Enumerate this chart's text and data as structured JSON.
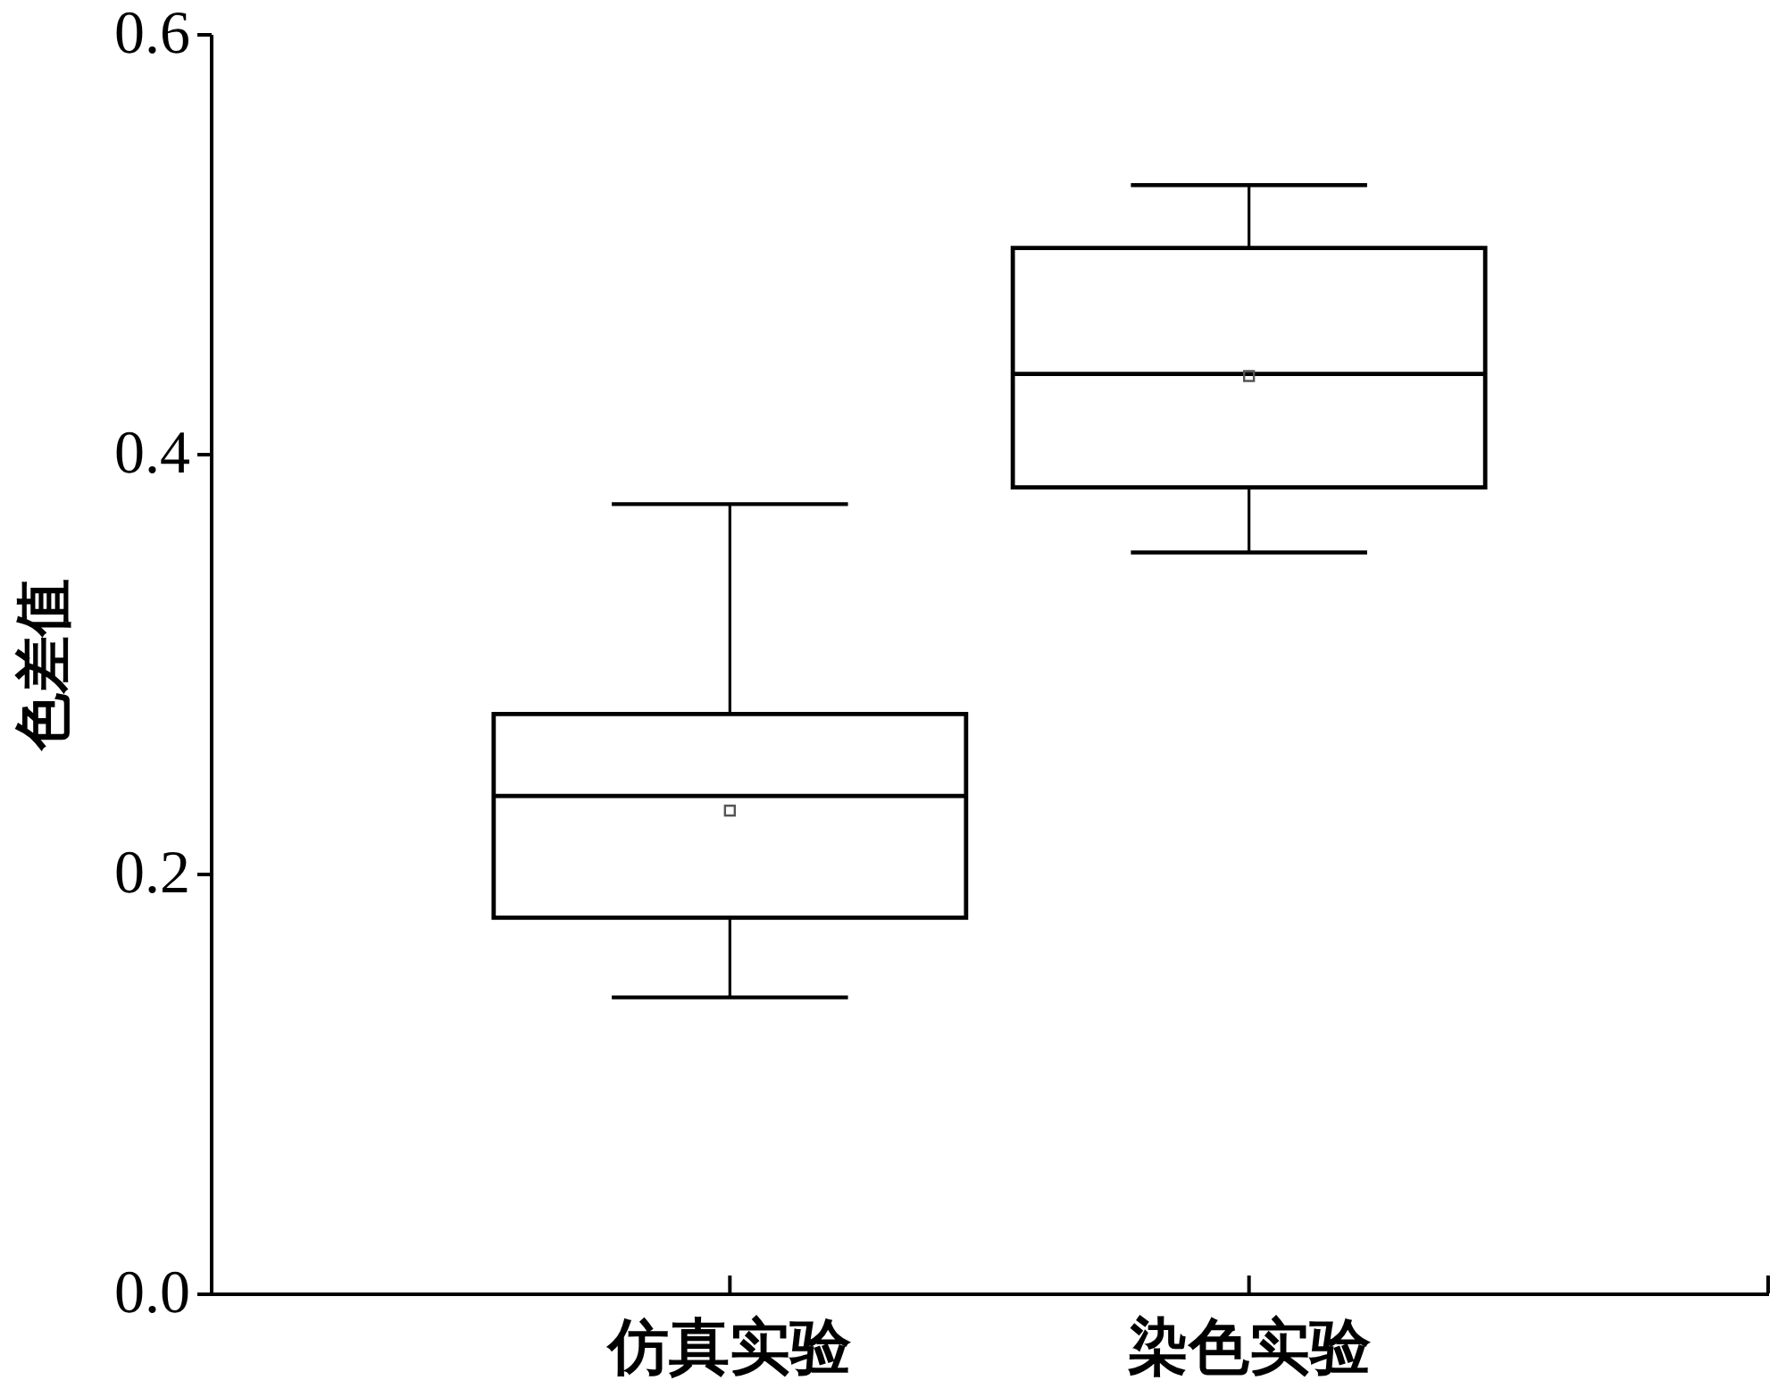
{
  "chart_data": {
    "type": "box",
    "ylabel": "色差值",
    "categories": [
      "仿真实验",
      "染色实验"
    ],
    "boxes": [
      {
        "low": 0.141,
        "q1": 0.179,
        "median": 0.237,
        "q3": 0.276,
        "high": 0.376,
        "mean": 0.23
      },
      {
        "low": 0.353,
        "q1": 0.384,
        "median": 0.438,
        "q3": 0.498,
        "high": 0.528,
        "mean": 0.437
      }
    ],
    "ylim": [
      0,
      0.6
    ],
    "yticks": [
      {
        "value": 0,
        "label": "0.0"
      },
      0.2,
      0.4,
      0.6
    ],
    "grid": false,
    "marker": "square"
  }
}
